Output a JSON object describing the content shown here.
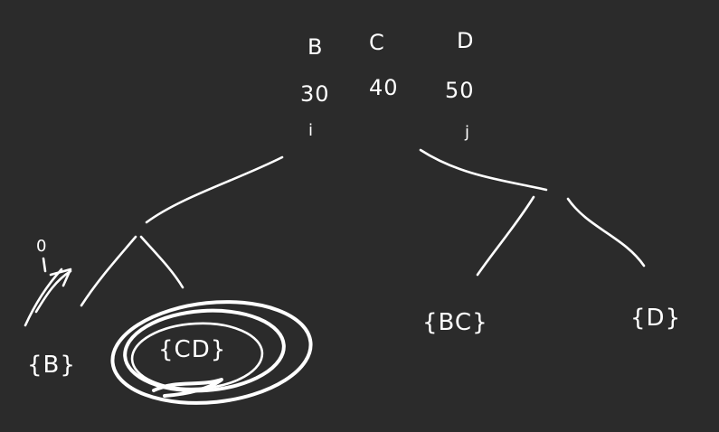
{
  "header": {
    "labels": [
      "B",
      "C",
      "D"
    ],
    "values": [
      "30",
      "40",
      "50"
    ],
    "pointers": [
      "i",
      "j"
    ]
  },
  "leaves": {
    "left_marker": "0",
    "left_set": "{B}",
    "circled_set": "{CD}",
    "right_set_1": "{BC}",
    "right_set_2": "{D}"
  },
  "colors": {
    "background": "#2b2b2b",
    "ink": "#ffffff"
  }
}
